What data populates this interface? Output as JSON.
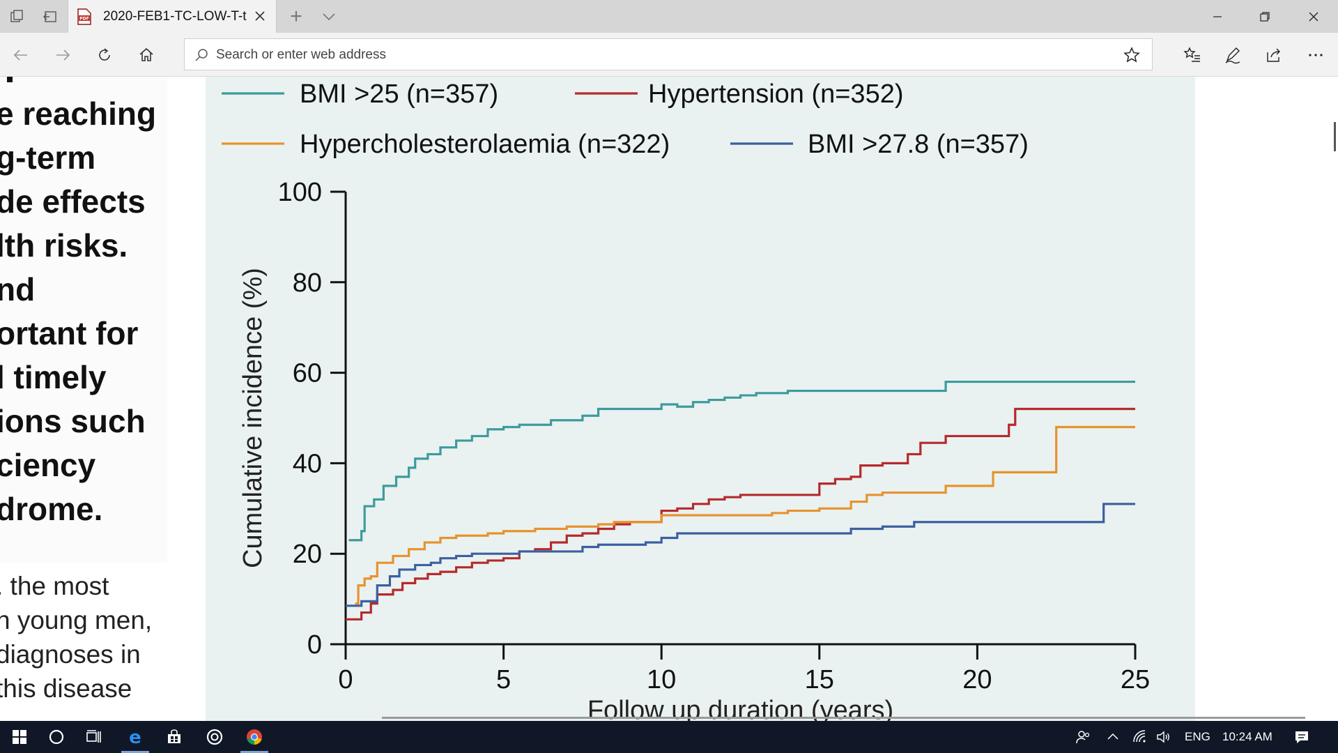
{
  "browser": {
    "tab_title": "2020-FEB1-TC-LOW-T-t",
    "address_placeholder": "Search or enter web address",
    "new_tab_symbol": "+"
  },
  "document": {
    "bold_lines": [
      "e reaching",
      "g-term",
      "de effects",
      "lth risks.",
      "nd",
      "ortant for",
      "l timely",
      "ions such",
      "ciency",
      "drome."
    ],
    "body_lines": [
      ". the most",
      "n young men,",
      "diagnoses in",
      "this disease"
    ]
  },
  "chart_data": {
    "type": "line",
    "step": true,
    "xlabel": "Follow up duration (years)",
    "ylabel": "Cumulative incidence (%)",
    "xlim": [
      0,
      25
    ],
    "ylim": [
      0,
      100
    ],
    "xticks": [
      0,
      5,
      10,
      15,
      20,
      25
    ],
    "yticks": [
      0,
      20,
      40,
      60,
      80,
      100
    ],
    "grid": false,
    "legend_position": "top",
    "series": [
      {
        "name": "BMI >25 (n=357)",
        "color": "#3e9a9e",
        "points": [
          [
            0.1,
            23
          ],
          [
            0.5,
            25
          ],
          [
            0.6,
            30.5
          ],
          [
            0.9,
            32
          ],
          [
            1.2,
            35
          ],
          [
            1.6,
            37
          ],
          [
            2,
            39
          ],
          [
            2.2,
            41
          ],
          [
            2.6,
            42
          ],
          [
            3,
            43.5
          ],
          [
            3.5,
            45
          ],
          [
            4,
            46
          ],
          [
            4.5,
            47.5
          ],
          [
            5,
            48
          ],
          [
            5.5,
            48.5
          ],
          [
            6.5,
            49.5
          ],
          [
            7.5,
            50.5
          ],
          [
            8,
            52
          ],
          [
            9.5,
            52
          ],
          [
            10,
            53
          ],
          [
            10.5,
            52.5
          ],
          [
            11,
            53.5
          ],
          [
            11.5,
            54
          ],
          [
            12,
            54.5
          ],
          [
            12.5,
            55
          ],
          [
            13,
            55.5
          ],
          [
            14,
            56
          ],
          [
            18,
            56
          ],
          [
            19,
            58
          ],
          [
            25,
            58
          ]
        ]
      },
      {
        "name": "Hypertension (n=352)",
        "color": "#b52a2c",
        "points": [
          [
            0,
            5.5
          ],
          [
            0.5,
            7
          ],
          [
            0.8,
            9
          ],
          [
            1,
            11
          ],
          [
            1.5,
            12
          ],
          [
            1.8,
            13.5
          ],
          [
            2.2,
            14.5
          ],
          [
            2.6,
            15.5
          ],
          [
            3,
            16
          ],
          [
            3.5,
            17
          ],
          [
            4,
            18
          ],
          [
            4.5,
            18.5
          ],
          [
            5,
            19
          ],
          [
            5.5,
            20.5
          ],
          [
            6,
            21
          ],
          [
            6.5,
            22.5
          ],
          [
            7,
            24
          ],
          [
            7.5,
            24.5
          ],
          [
            8,
            25.5
          ],
          [
            8.5,
            26.5
          ],
          [
            9,
            27
          ],
          [
            9.6,
            27
          ],
          [
            10,
            29.5
          ],
          [
            10.5,
            30
          ],
          [
            11,
            31
          ],
          [
            11.5,
            32
          ],
          [
            12,
            32.5
          ],
          [
            12.5,
            33
          ],
          [
            13,
            33
          ],
          [
            14,
            33
          ],
          [
            14.5,
            33
          ],
          [
            15,
            35.5
          ],
          [
            15.5,
            36.5
          ],
          [
            16,
            37
          ],
          [
            16.3,
            39.5
          ],
          [
            17,
            40
          ],
          [
            17.8,
            42
          ],
          [
            18.2,
            44.5
          ],
          [
            19,
            46
          ],
          [
            20,
            46
          ],
          [
            21,
            48.5
          ],
          [
            21.2,
            52
          ],
          [
            25,
            52
          ]
        ]
      },
      {
        "name": "Hypercholesterolaemia (n=322)",
        "color": "#e8922e",
        "points": [
          [
            0.3,
            9
          ],
          [
            0.4,
            13
          ],
          [
            0.6,
            14.5
          ],
          [
            0.8,
            15
          ],
          [
            1,
            18
          ],
          [
            1.5,
            19.5
          ],
          [
            2,
            21
          ],
          [
            2.5,
            22.5
          ],
          [
            3,
            23.5
          ],
          [
            3.5,
            24
          ],
          [
            4,
            24
          ],
          [
            4.5,
            24.5
          ],
          [
            5,
            25
          ],
          [
            5.5,
            25
          ],
          [
            6,
            25.5
          ],
          [
            7,
            26
          ],
          [
            8,
            26.5
          ],
          [
            8.5,
            27
          ],
          [
            9.5,
            27
          ],
          [
            10,
            28.5
          ],
          [
            13.5,
            29
          ],
          [
            14,
            29.5
          ],
          [
            15,
            30
          ],
          [
            15.5,
            30
          ],
          [
            16,
            31.5
          ],
          [
            16.5,
            33
          ],
          [
            17,
            33.5
          ],
          [
            18,
            33.5
          ],
          [
            19,
            35
          ],
          [
            20,
            35
          ],
          [
            20.5,
            38
          ],
          [
            22,
            38
          ],
          [
            22.5,
            48
          ],
          [
            25,
            48
          ]
        ]
      },
      {
        "name": "BMI >27.8 (n=357)",
        "color": "#3d5fa0",
        "points": [
          [
            0,
            8.5
          ],
          [
            0.5,
            9.5
          ],
          [
            1,
            13
          ],
          [
            1.4,
            15
          ],
          [
            1.7,
            16.5
          ],
          [
            2.2,
            17.5
          ],
          [
            2.7,
            18
          ],
          [
            3,
            19
          ],
          [
            3.5,
            19.5
          ],
          [
            4,
            20
          ],
          [
            5,
            20
          ],
          [
            5.5,
            20.5
          ],
          [
            7,
            20.5
          ],
          [
            7.5,
            21.5
          ],
          [
            8,
            22
          ],
          [
            9,
            22
          ],
          [
            9.5,
            22.5
          ],
          [
            10,
            23.5
          ],
          [
            10.5,
            24.5
          ],
          [
            15,
            24.5
          ],
          [
            16,
            25.5
          ],
          [
            17,
            26
          ],
          [
            18,
            27
          ],
          [
            19,
            27
          ],
          [
            23.5,
            27
          ],
          [
            24,
            31
          ],
          [
            25,
            31
          ]
        ]
      }
    ]
  },
  "taskbar": {
    "language": "ENG",
    "time": "10:24 AM"
  }
}
